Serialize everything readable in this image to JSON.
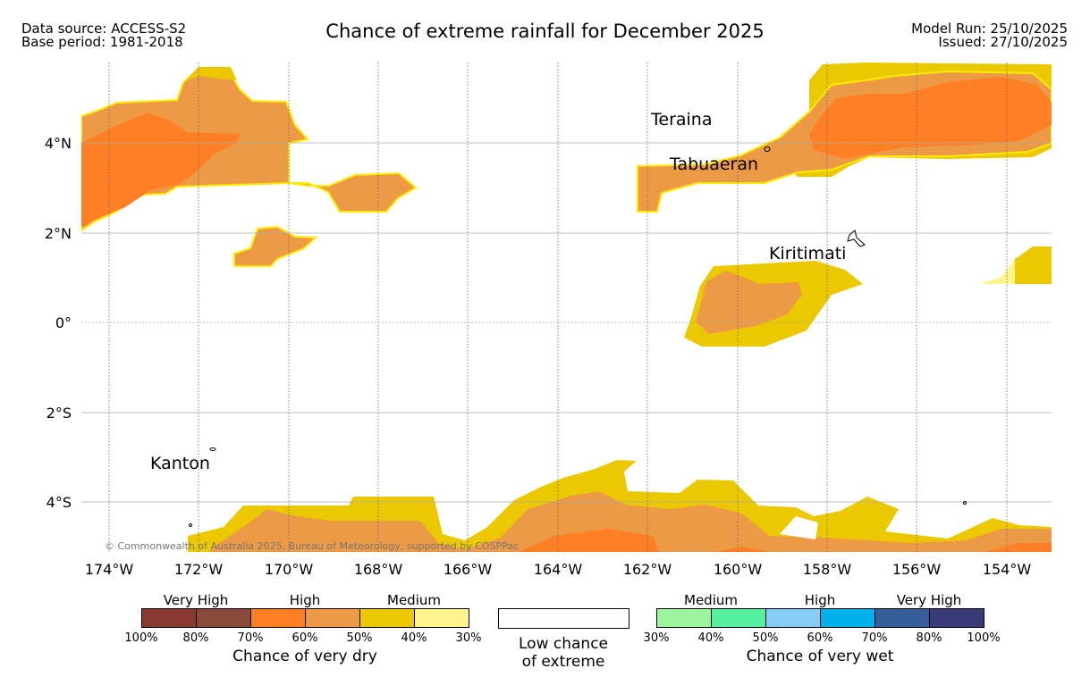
{
  "header": {
    "source_line": "Data source: ACCESS-S2",
    "base_line": "Base period: 1981-2018",
    "title": "Chance of extreme rainfall for December 2025",
    "model_run": "Model Run: 25/10/2025",
    "issued": "Issued: 27/10/2025"
  },
  "map": {
    "lat_labels": [
      "4°N",
      "2°N",
      "0°",
      "2°S",
      "4°S"
    ],
    "lon_labels": [
      "174°W",
      "172°W",
      "170°W",
      "168°W",
      "166°W",
      "164°W",
      "162°W",
      "160°W",
      "158°W",
      "156°W",
      "154°W"
    ],
    "places": [
      "Teraina",
      "Tabuaeran",
      "Kiritimati",
      "Kanton"
    ],
    "copyright": "© Commonwealth of Australia 2025, Bureau of Meteorology, supported by COSPPac"
  },
  "legend": {
    "dry": {
      "categories": [
        "Very High",
        "High",
        "Medium"
      ],
      "ticks": [
        "100%",
        "80%",
        "70%",
        "60%",
        "50%",
        "40%",
        "30%"
      ],
      "colors": [
        "#8b3a32",
        "#8a4a3a",
        "#ff7f24",
        "#ec9a46",
        "#ecc800",
        "#fff58c"
      ],
      "title": "Chance of very dry"
    },
    "neutral": {
      "line1": "Low chance",
      "line2": "of extreme"
    },
    "wet": {
      "categories": [
        "Medium",
        "High",
        "Very High"
      ],
      "ticks": [
        "30%",
        "40%",
        "50%",
        "60%",
        "70%",
        "80%",
        "100%"
      ],
      "colors": [
        "#9cf59c",
        "#55f0a0",
        "#87cdfa",
        "#00b0ea",
        "#345f9a",
        "#3b3a78"
      ],
      "title": "Chance of very wet"
    }
  }
}
